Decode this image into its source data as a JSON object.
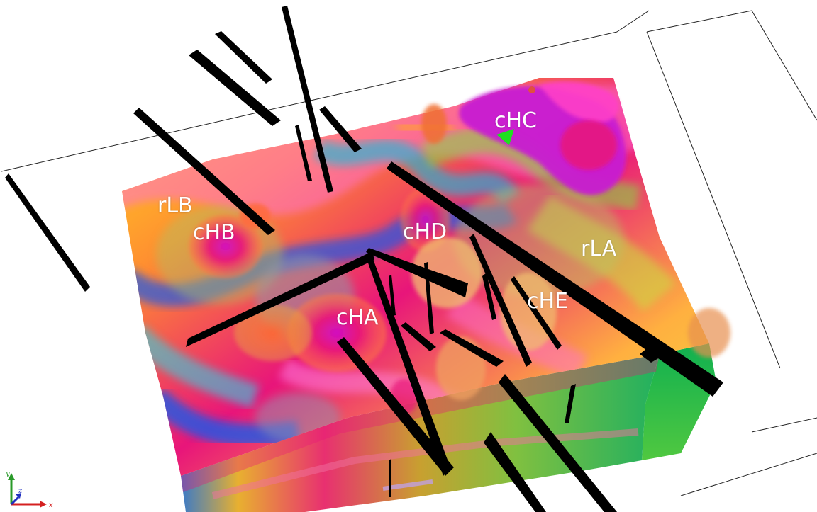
{
  "labels": {
    "rlb": "rLB",
    "chb": "cHB",
    "chc": "cHC",
    "chd": "cHD",
    "rla": "rLA",
    "che": "cHE",
    "cha": "cHA"
  },
  "axes": {
    "x": "x",
    "y": "y",
    "z": "z",
    "x_color": "#d42020",
    "y_color": "#2a9a2a",
    "z_color": "#2030c0"
  },
  "colors": {
    "anomaly_high": "#e8157a",
    "anomaly_peak": "#c81ad2",
    "anomaly_low": "#1a5ae8",
    "background": "#ffffff",
    "fault_plane": "#000000"
  }
}
